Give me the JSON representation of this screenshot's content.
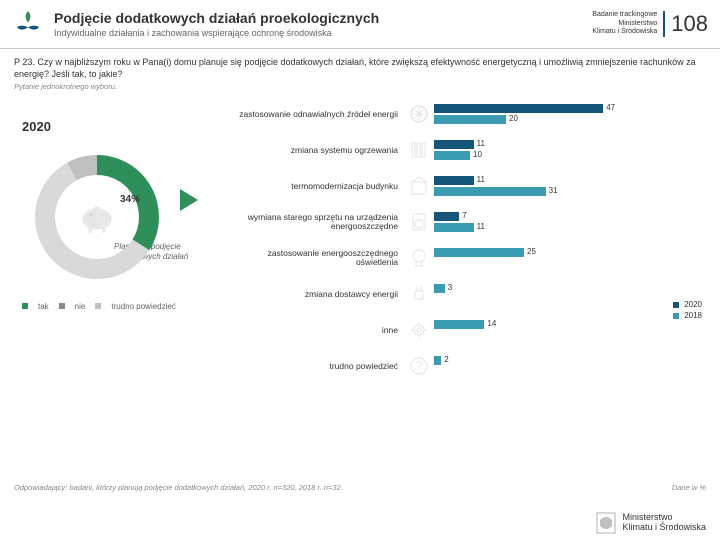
{
  "header": {
    "title": "Podjęcie dodatkowych działań proekologicznych",
    "subtitle": "Indywidualne działania i zachowania wspierające ochronę środowiska",
    "right1": "Badanie trackingowe",
    "right2": "Ministerstwo",
    "right3": "Klimatu i Środowiska",
    "page": "108"
  },
  "question": "P 23. Czy w najbliższym roku w Pana(i) domu planuje się podjęcie dodatkowych działań, które zwiększą efektywność energetyczną i umożliwią zmniejszenie rachunków za energię? Jeśli tak, to jakie?",
  "question_note": "Pytanie jednokrotnego wyboru.",
  "left": {
    "year": "2020",
    "donut": {
      "segments": [
        {
          "value": 34,
          "color": "#2f8f5b",
          "label": "34%"
        },
        {
          "value": 58,
          "color": "#d9d9d9"
        },
        {
          "value": 8,
          "color": "#bfbfbf"
        }
      ],
      "center_label": "34%"
    },
    "plan_label": "Planujący podjęcie dodatkowych działań",
    "legend": [
      {
        "color": "#2f8f5b",
        "label": "tak"
      },
      {
        "color": "#8a8a8a",
        "label": "nie"
      },
      {
        "color": "#bfbfbf",
        "label": "trudno powiedzieć"
      }
    ]
  },
  "bars": {
    "max": 50,
    "color_2020": "#13567a",
    "color_2018": "#3b9bb0",
    "items": [
      {
        "label": "zastosowanie odnawialnych źródeł energii",
        "v2020": 47,
        "v2018": 20,
        "icon": "energy"
      },
      {
        "label": "zmiana systemu ogrzewania",
        "v2020": 11,
        "v2018": 10,
        "icon": "heating"
      },
      {
        "label": "termomodernizacja budynku",
        "v2020": 11,
        "v2018": 31,
        "icon": "building"
      },
      {
        "label": "wymiana starego sprzętu na urządzenia energooszczędne",
        "v2020": 7,
        "v2018": 11,
        "icon": "appliance"
      },
      {
        "label": "zastosowanie energooszczędnego oświetlenia",
        "v2020": null,
        "v2018": 25,
        "icon": "bulb"
      },
      {
        "label": "zmiana dostawcy energii",
        "v2020": null,
        "v2018": 3,
        "icon": "plug"
      },
      {
        "label": "inne",
        "v2020": null,
        "v2018": 14,
        "icon": "gear"
      },
      {
        "label": "trudno powiedzieć",
        "v2020": null,
        "v2018": 2,
        "icon": "question"
      }
    ],
    "legend": [
      {
        "color": "#13567a",
        "label": "2020"
      },
      {
        "color": "#3b9bb0",
        "label": "2018"
      }
    ]
  },
  "footer_left": "Odpowiadający: badani, którzy planują podjęcie dodatkowych działań, 2020 r. n=320, 2018 r. n=32.",
  "footer_right": "Dane w %",
  "ministry": "Ministerstwo\nKlimatu i Środowiska"
}
